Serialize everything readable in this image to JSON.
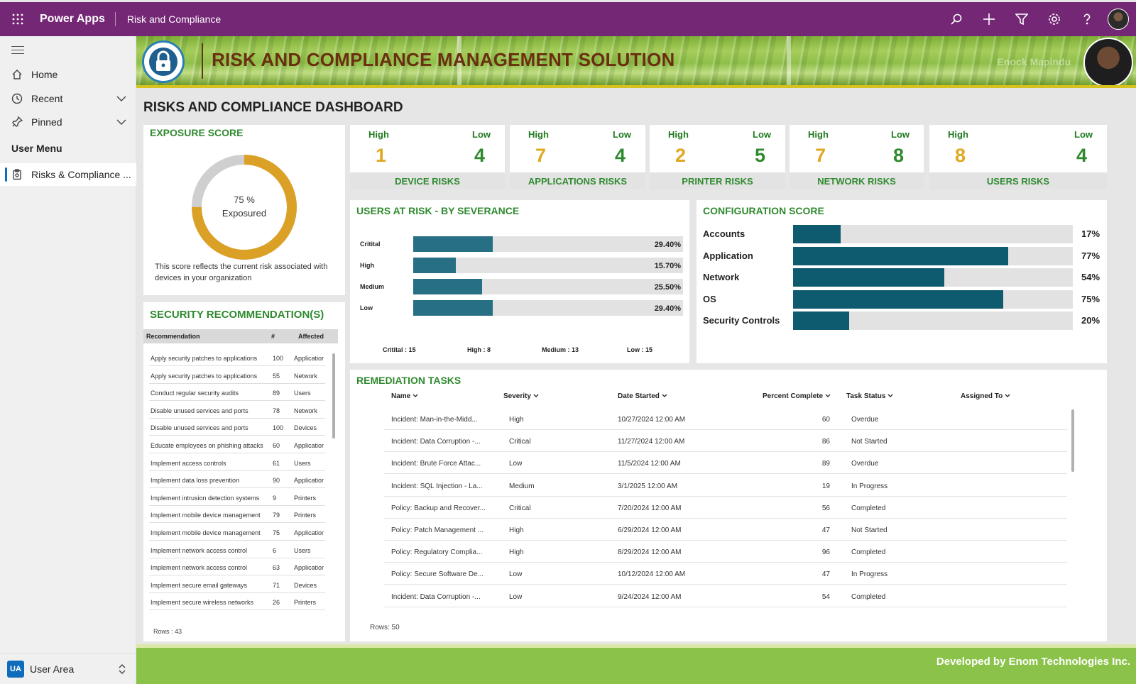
{
  "topbar": {
    "app_name": "Power Apps",
    "breadcrumb": "Risk and Compliance",
    "icons": [
      "search-icon",
      "add-icon",
      "filter-icon",
      "settings-icon",
      "help-icon"
    ]
  },
  "sidebar": {
    "items": [
      {
        "label": "Home",
        "icon": "home-icon"
      },
      {
        "label": "Recent",
        "icon": "clock-icon"
      },
      {
        "label": "Pinned",
        "icon": "pin-icon"
      }
    ],
    "section": "User Menu",
    "active_item": "Risks & Compliance ...",
    "user_area": {
      "badge": "UA",
      "label": "User Area"
    }
  },
  "banner": {
    "title": "RISK AND COMPLIANCE MANAGEMENT SOLUTION",
    "user_name": "Enock Mapindu"
  },
  "dashboard_title": "RISKS AND COMPLIANCE DASHBOARD",
  "exposure": {
    "title": "EXPOSURE SCORE",
    "value": 75,
    "value_text": "75 %",
    "label": "Exposured",
    "description": "This score reflects the current risk associated with devices in your organization"
  },
  "risk_cards": [
    {
      "name": "DEVICE RISKS",
      "high_label": "High",
      "low_label": "Low",
      "high": "1",
      "low": "4"
    },
    {
      "name": "APPLICATIONS RISKS",
      "high_label": "High",
      "low_label": "Low",
      "high": "7",
      "low": "4"
    },
    {
      "name": "PRINTER RISKS",
      "high_label": "High",
      "low_label": "Low",
      "high": "2",
      "low": "5"
    },
    {
      "name": "NETWORK RISKS",
      "high_label": "High",
      "low_label": "Low",
      "high": "7",
      "low": "8"
    },
    {
      "name": "USERS RISKS",
      "high_label": "High",
      "low_label": "Low",
      "high": "8",
      "low": "4"
    }
  ],
  "colors": {
    "high": "#e0a820",
    "low": "#2f8a2f",
    "bar": "#276f84",
    "config_bar": "#0e5a6f"
  },
  "users_at_risk": {
    "title": "USERS AT RISK - BY SEVERANCE",
    "bars": [
      {
        "label": "Critital",
        "value": 29.4,
        "value_text": "29.40%"
      },
      {
        "label": "High",
        "value": 15.7,
        "value_text": "15.70%"
      },
      {
        "label": "Medium",
        "value": 25.5,
        "value_text": "25.50%"
      },
      {
        "label": "Low",
        "value": 29.4,
        "value_text": "29.40%"
      }
    ],
    "counts": [
      "Critital : 15",
      "High : 8",
      "Medium : 13",
      "Low : 15"
    ]
  },
  "config_score": {
    "title": "CONFIGURATION SCORE",
    "bars": [
      {
        "label": "Accounts",
        "value": 17,
        "value_text": "17%"
      },
      {
        "label": "Application",
        "value": 77,
        "value_text": "77%"
      },
      {
        "label": "Network",
        "value": 54,
        "value_text": "54%"
      },
      {
        "label": "OS",
        "value": 75,
        "value_text": "75%"
      },
      {
        "label": "Security Controls",
        "value": 20,
        "value_text": "20%"
      }
    ]
  },
  "recommendations": {
    "title": "SECURITY RECOMMENDATION(S)",
    "headers": [
      "Recommendation",
      "#",
      "Affected"
    ],
    "rows": [
      [
        "Apply security patches to applications",
        "100",
        "Applicatior"
      ],
      [
        "Apply security patches to applications",
        "55",
        "Network"
      ],
      [
        "Conduct regular security audits",
        "89",
        "Users"
      ],
      [
        "Disable unused services and ports",
        "78",
        "Network"
      ],
      [
        "Disable unused services and ports",
        "100",
        "Devices"
      ],
      [
        "Educate employees on phishing attacks",
        "60",
        "Applicatior"
      ],
      [
        "Implement access controls",
        "61",
        "Users"
      ],
      [
        "Implement data loss prevention",
        "90",
        "Applicatior"
      ],
      [
        "Implement intrusion detection systems",
        "9",
        "Printers"
      ],
      [
        "Implement mobile device management",
        "79",
        "Printers"
      ],
      [
        "Implement mobile device management",
        "75",
        "Applicatior"
      ],
      [
        "Implement network access control",
        "6",
        "Users"
      ],
      [
        "Implement network access control",
        "63",
        "Applicatior"
      ],
      [
        "Implement secure email gateways",
        "71",
        "Devices"
      ],
      [
        "Implement secure wireless networks",
        "26",
        "Printers"
      ]
    ],
    "rows_label": "Rows : 43"
  },
  "remediation": {
    "title": "REMEDIATION TASKS",
    "headers": [
      "Name",
      "Severity",
      "Date Started",
      "Percent Complete",
      "Task Status",
      "Assigned To"
    ],
    "rows": [
      [
        "Incident: Man-in-the-Midd...",
        "High",
        "10/27/2024 12:00 AM",
        "60",
        "Overdue"
      ],
      [
        "Incident: Data Corruption -...",
        "Critical",
        "11/27/2024 12:00 AM",
        "86",
        "Not Started"
      ],
      [
        "Incident: Brute Force Attac...",
        "Low",
        "11/5/2024 12:00 AM",
        "89",
        "Overdue"
      ],
      [
        "Incident: SQL Injection - La...",
        "Medium",
        "3/1/2025 12:00 AM",
        "19",
        "In Progress"
      ],
      [
        "Policy: Backup and Recover...",
        "Critical",
        "7/20/2024 12:00 AM",
        "56",
        "Completed"
      ],
      [
        "Policy: Patch Management ...",
        "High",
        "6/29/2024 12:00 AM",
        "47",
        "Not Started"
      ],
      [
        "Policy: Regulatory Complia...",
        "High",
        "8/29/2024 12:00 AM",
        "96",
        "Completed"
      ],
      [
        "Policy: Secure Software De...",
        "Low",
        "10/12/2024 12:00 AM",
        "47",
        "In Progress"
      ],
      [
        "Incident: Data Corruption -...",
        "Low",
        "9/24/2024 12:00 AM",
        "54",
        "Completed"
      ]
    ],
    "rows_label": "Rows: 50"
  },
  "footer": {
    "text": "Developed by Enom Technologies Inc."
  }
}
